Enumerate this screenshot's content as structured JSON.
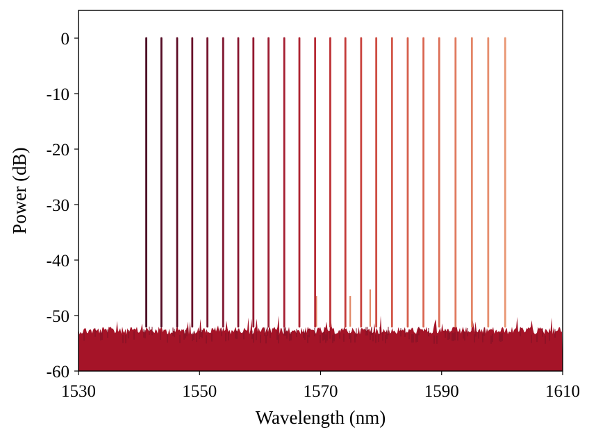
{
  "chart_data": {
    "type": "line",
    "title": "",
    "xlabel": "Wavelength (nm)",
    "ylabel": "Power (dB)",
    "xlim": [
      1530,
      1610
    ],
    "ylim": [
      -60,
      5
    ],
    "x_ticks": [
      1530,
      1550,
      1570,
      1590,
      1610
    ],
    "y_ticks": [
      0,
      -10,
      -20,
      -30,
      -40,
      -50,
      -60
    ],
    "x_tick_labels": [
      "1530",
      "1550",
      "1570",
      "1590",
      "1610"
    ],
    "y_tick_labels": [
      "0",
      "-10",
      "-20",
      "-30",
      "-40",
      "-50",
      "-60"
    ],
    "grid": false,
    "legend": "none",
    "noise_floor": {
      "range": [
        -60,
        -52
      ],
      "peak_level": -50,
      "color": "#a51428"
    },
    "series": [
      {
        "peak_wavelength": 1541.2,
        "peak_power": 0,
        "color": "#4a0a22"
      },
      {
        "peak_wavelength": 1543.7,
        "peak_power": 0,
        "color": "#540b24"
      },
      {
        "peak_wavelength": 1546.3,
        "peak_power": 0,
        "color": "#5f0d27"
      },
      {
        "peak_wavelength": 1548.8,
        "peak_power": 0,
        "color": "#690f29"
      },
      {
        "peak_wavelength": 1551.3,
        "peak_power": 0,
        "color": "#74112b"
      },
      {
        "peak_wavelength": 1553.9,
        "peak_power": 0,
        "color": "#7e132d"
      },
      {
        "peak_wavelength": 1556.4,
        "peak_power": 0,
        "color": "#89152f"
      },
      {
        "peak_wavelength": 1558.9,
        "peak_power": 0,
        "color": "#93172f"
      },
      {
        "peak_wavelength": 1561.4,
        "peak_power": 0,
        "color": "#9c1a30"
      },
      {
        "peak_wavelength": 1564.0,
        "peak_power": 0,
        "color": "#a51e31"
      },
      {
        "peak_wavelength": 1566.5,
        "peak_power": 0,
        "color": "#ae2432"
      },
      {
        "peak_wavelength": 1569.1,
        "peak_power": 0,
        "color": "#b62a34"
      },
      {
        "peak_wavelength": 1571.6,
        "peak_power": 0,
        "color": "#bd3236"
      },
      {
        "peak_wavelength": 1574.1,
        "peak_power": 0,
        "color": "#c33a39"
      },
      {
        "peak_wavelength": 1576.7,
        "peak_power": 0,
        "color": "#c9433d"
      },
      {
        "peak_wavelength": 1579.2,
        "peak_power": 0,
        "color": "#ce4c41"
      },
      {
        "peak_wavelength": 1581.8,
        "peak_power": 0,
        "color": "#d25546"
      },
      {
        "peak_wavelength": 1584.4,
        "peak_power": 0,
        "color": "#d65e4c"
      },
      {
        "peak_wavelength": 1587.0,
        "peak_power": 0,
        "color": "#da6752"
      },
      {
        "peak_wavelength": 1589.6,
        "peak_power": 0,
        "color": "#dd7058"
      },
      {
        "peak_wavelength": 1592.3,
        "peak_power": 0,
        "color": "#e07a5f"
      },
      {
        "peak_wavelength": 1595.0,
        "peak_power": 0,
        "color": "#e38466"
      },
      {
        "peak_wavelength": 1597.7,
        "peak_power": 0,
        "color": "#e68d6d"
      },
      {
        "peak_wavelength": 1600.5,
        "peak_power": 0,
        "color": "#e99774"
      }
    ],
    "sidebands": [
      {
        "wavelength": 1569.3,
        "power": -46.5
      },
      {
        "wavelength": 1574.9,
        "power": -46.5
      },
      {
        "wavelength": 1578.2,
        "power": -45.3
      }
    ]
  }
}
